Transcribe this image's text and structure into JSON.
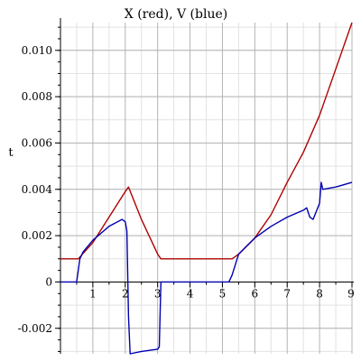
{
  "chart_data": {
    "type": "line",
    "title": "X (red), V (blue)",
    "xlabel": "",
    "ylabel": "t",
    "xlim": [
      0,
      9
    ],
    "ylim": [
      -0.0031,
      0.0112
    ],
    "grid": true,
    "x_ticks": [
      {
        "value": 1,
        "label": "1"
      },
      {
        "value": 2,
        "label": "2"
      },
      {
        "value": 3,
        "label": "3"
      },
      {
        "value": 4,
        "label": "4"
      },
      {
        "value": 5,
        "label": "5"
      },
      {
        "value": 6,
        "label": "6"
      },
      {
        "value": 7,
        "label": "7"
      },
      {
        "value": 8,
        "label": "8"
      },
      {
        "value": 9,
        "label": "9"
      }
    ],
    "y_ticks": [
      {
        "value": -0.002,
        "label": "-0.002"
      },
      {
        "value": 0,
        "label": "0"
      },
      {
        "value": 0.002,
        "label": "0.002"
      },
      {
        "value": 0.004,
        "label": "0.004"
      },
      {
        "value": 0.006,
        "label": "0.006"
      },
      {
        "value": 0.008,
        "label": "0.008"
      },
      {
        "value": 0.01,
        "label": "0.010"
      }
    ],
    "series": [
      {
        "color": "#b00000",
        "x": [
          0,
          0.55,
          1.0,
          1.5,
          2.0,
          2.1,
          2.5,
          3.0,
          3.1,
          4.0,
          5.0,
          5.3,
          5.5,
          6.0,
          6.5,
          7.0,
          7.5,
          8.0,
          8.5,
          9.0
        ],
        "y": [
          0.001,
          0.001,
          0.0017,
          0.0028,
          0.0039,
          0.0041,
          0.0027,
          0.0012,
          0.001,
          0.001,
          0.001,
          0.001,
          0.0012,
          0.0019,
          0.0029,
          0.0043,
          0.0056,
          0.0072,
          0.0092,
          0.0112
        ]
      },
      {
        "color": "#0000b0",
        "x": [
          0,
          0.5,
          0.55,
          0.6,
          0.7,
          1.0,
          1.5,
          1.9,
          2.0,
          2.05,
          2.1,
          2.15,
          2.5,
          3.0,
          3.05,
          3.1,
          4.0,
          5.0,
          5.2,
          5.3,
          5.5,
          6.0,
          6.5,
          7.0,
          7.5,
          7.6,
          7.7,
          7.8,
          8.0,
          8.05,
          8.1,
          8.5,
          9.0
        ],
        "y": [
          0,
          0,
          0.0005,
          0.001,
          0.0013,
          0.0018,
          0.0024,
          0.0027,
          0.0026,
          0.0022,
          -0.0015,
          -0.0031,
          -0.003,
          -0.0029,
          -0.0028,
          0,
          0,
          0,
          0,
          0.0003,
          0.0012,
          0.0019,
          0.0024,
          0.0028,
          0.0031,
          0.0032,
          0.0028,
          0.0027,
          0.0034,
          0.0043,
          0.004,
          0.0041,
          0.0043
        ]
      }
    ]
  }
}
